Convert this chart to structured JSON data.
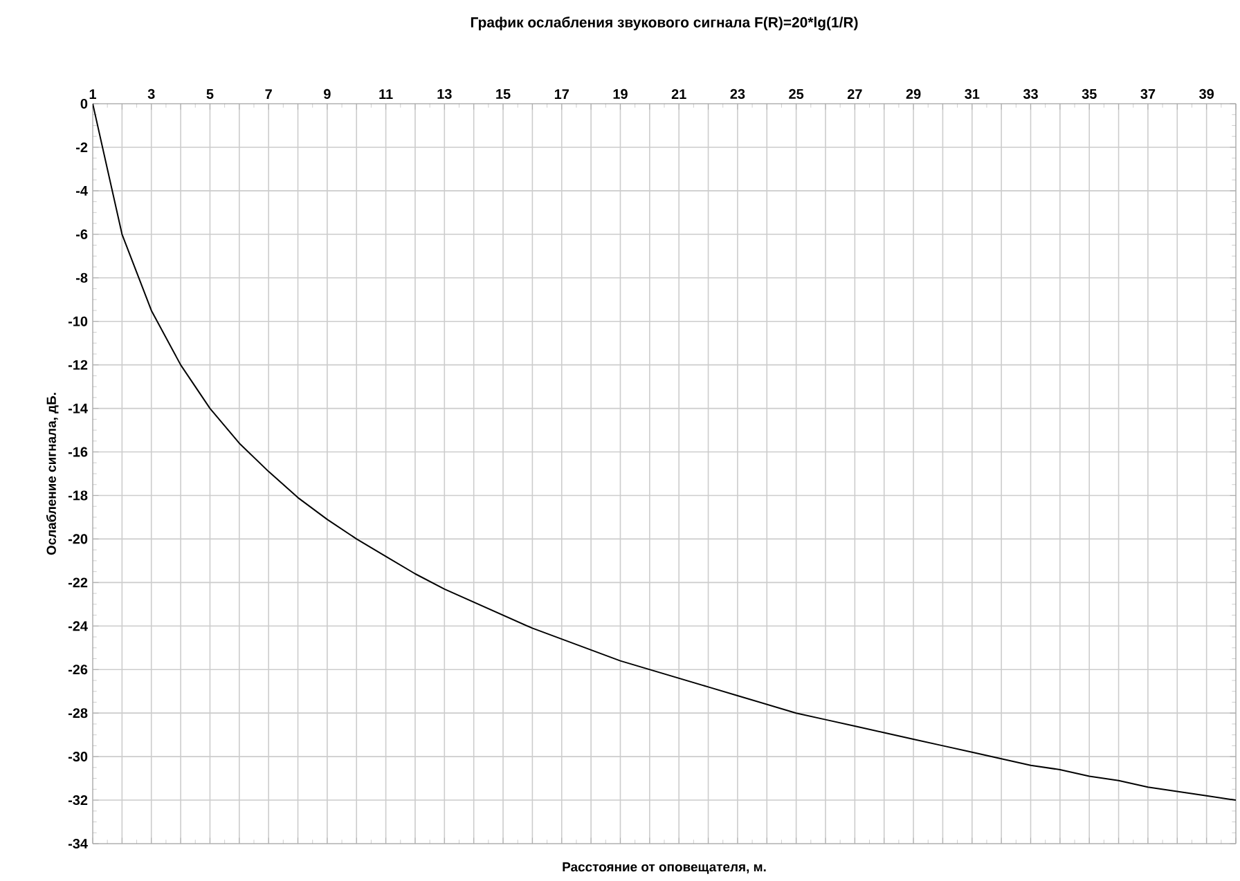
{
  "chart_data": {
    "type": "line",
    "title": "График ослабления звукового сигнала F(R)=20*lg(1/R)",
    "xlabel": "Расстояние от оповещателя, м.",
    "ylabel": "Ослабление сигнала, дБ.",
    "x": [
      1,
      2,
      3,
      4,
      5,
      6,
      7,
      8,
      9,
      10,
      11,
      12,
      13,
      14,
      15,
      16,
      17,
      18,
      19,
      20,
      21,
      22,
      23,
      24,
      25,
      26,
      27,
      28,
      29,
      30,
      31,
      32,
      33,
      34,
      35,
      36,
      37,
      38,
      39,
      40
    ],
    "series": [
      {
        "color": "#000000",
        "values": [
          0,
          -6.0,
          -9.5,
          -12.0,
          -14.0,
          -15.6,
          -16.9,
          -18.1,
          -19.1,
          -20.0,
          -20.8,
          -21.6,
          -22.3,
          -22.9,
          -23.5,
          -24.1,
          -24.6,
          -25.1,
          -25.6,
          -26.0,
          -26.4,
          -26.8,
          -27.2,
          -27.6,
          -28.0,
          -28.3,
          -28.6,
          -28.9,
          -29.2,
          -29.5,
          -29.8,
          -30.1,
          -30.4,
          -30.6,
          -30.9,
          -31.1,
          -31.4,
          -31.6,
          -31.8,
          -32.0
        ]
      }
    ],
    "xlim": [
      1,
      40
    ],
    "ylim": [
      -34,
      0
    ],
    "xticks": [
      1,
      {
        "value": 2,
        "label": null
      },
      3,
      {
        "value": 4,
        "label": null
      },
      5,
      {
        "value": 6,
        "label": null
      },
      7,
      {
        "value": 8,
        "label": null
      },
      9,
      {
        "value": 10,
        "label": null
      },
      11,
      {
        "value": 12,
        "label": null
      },
      13,
      {
        "value": 14,
        "label": null
      },
      15,
      {
        "value": 16,
        "label": null
      },
      17,
      {
        "value": 18,
        "label": null
      },
      19,
      {
        "value": 20,
        "label": null
      },
      21,
      {
        "value": 22,
        "label": null
      },
      23,
      {
        "value": 24,
        "label": null
      },
      25,
      {
        "value": 26,
        "label": null
      },
      27,
      {
        "value": 28,
        "label": null
      },
      29,
      {
        "value": 30,
        "label": null
      },
      31,
      {
        "value": 32,
        "label": null
      },
      33,
      {
        "value": 34,
        "label": null
      },
      35,
      {
        "value": 36,
        "label": null
      },
      37,
      {
        "value": 38,
        "label": null
      },
      39,
      {
        "value": 40,
        "label": null
      }
    ],
    "yticks": [
      0,
      -2,
      -4,
      -6,
      -8,
      -10,
      -12,
      -14,
      -16,
      -18,
      -20,
      -22,
      -24,
      -26,
      -28,
      -30,
      -32,
      -34
    ],
    "grid": true,
    "marker": "none",
    "line_style": "solid"
  }
}
